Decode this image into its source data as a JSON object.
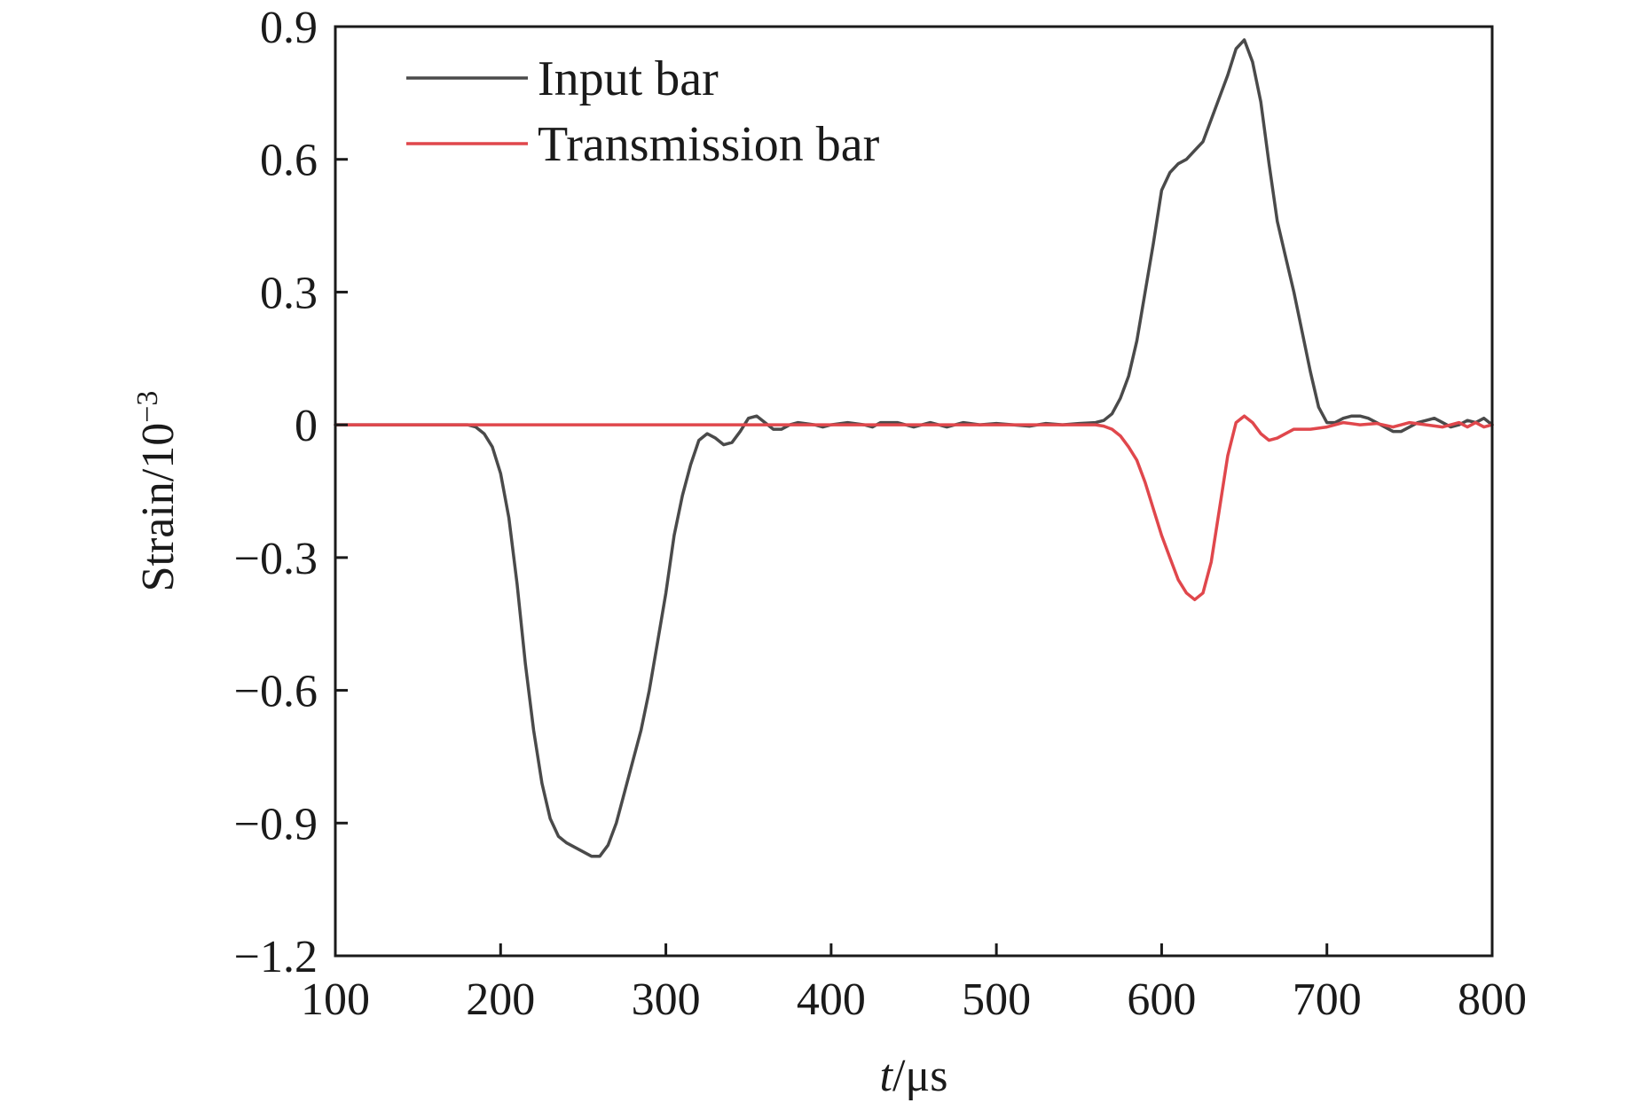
{
  "chart_data": {
    "type": "line",
    "title": "",
    "xlabel": {
      "var": "t",
      "unit": "/μs"
    },
    "ylabel": {
      "base": "Strain/10",
      "exp": "−3"
    },
    "xlim": [
      100,
      800
    ],
    "ylim": [
      -1.2,
      0.9
    ],
    "xticks": [
      100,
      200,
      300,
      400,
      500,
      600,
      700,
      800
    ],
    "xtick_labels": [
      "100",
      "200",
      "300",
      "400",
      "500",
      "600",
      "700",
      "800"
    ],
    "yticks": [
      -1.2,
      -0.9,
      -0.6,
      -0.3,
      0,
      0.3,
      0.6,
      0.9
    ],
    "ytick_labels": [
      "−1.2",
      "−0.9",
      "−0.6",
      "−0.3",
      "0",
      "0.3",
      "0.6",
      "0.9"
    ],
    "grid": false,
    "legend_position": "top-left",
    "series": [
      {
        "name": "Input bar",
        "color": "#4a4a4a",
        "points": [
          [
            100,
            0
          ],
          [
            170,
            0
          ],
          [
            180,
            0
          ],
          [
            185,
            -0.005
          ],
          [
            190,
            -0.02
          ],
          [
            195,
            -0.05
          ],
          [
            200,
            -0.11
          ],
          [
            205,
            -0.21
          ],
          [
            210,
            -0.36
          ],
          [
            215,
            -0.54
          ],
          [
            220,
            -0.69
          ],
          [
            225,
            -0.81
          ],
          [
            230,
            -0.89
          ],
          [
            235,
            -0.93
          ],
          [
            240,
            -0.945
          ],
          [
            245,
            -0.955
          ],
          [
            250,
            -0.965
          ],
          [
            255,
            -0.975
          ],
          [
            260,
            -0.975
          ],
          [
            265,
            -0.95
          ],
          [
            270,
            -0.9
          ],
          [
            275,
            -0.83
          ],
          [
            280,
            -0.76
          ],
          [
            285,
            -0.69
          ],
          [
            290,
            -0.6
          ],
          [
            295,
            -0.49
          ],
          [
            300,
            -0.38
          ],
          [
            305,
            -0.25
          ],
          [
            310,
            -0.16
          ],
          [
            315,
            -0.09
          ],
          [
            320,
            -0.035
          ],
          [
            325,
            -0.02
          ],
          [
            330,
            -0.03
          ],
          [
            335,
            -0.045
          ],
          [
            340,
            -0.04
          ],
          [
            345,
            -0.015
          ],
          [
            350,
            0.015
          ],
          [
            355,
            0.02
          ],
          [
            360,
            0.005
          ],
          [
            365,
            -0.01
          ],
          [
            370,
            -0.01
          ],
          [
            375,
            0
          ],
          [
            380,
            0.005
          ],
          [
            390,
            0
          ],
          [
            395,
            -0.005
          ],
          [
            400,
            0
          ],
          [
            410,
            0.005
          ],
          [
            420,
            0
          ],
          [
            425,
            -0.005
          ],
          [
            430,
            0.005
          ],
          [
            440,
            0.005
          ],
          [
            450,
            -0.005
          ],
          [
            460,
            0.005
          ],
          [
            470,
            -0.005
          ],
          [
            480,
            0.005
          ],
          [
            490,
            0
          ],
          [
            500,
            0.003
          ],
          [
            510,
            0
          ],
          [
            520,
            -0.003
          ],
          [
            530,
            0.003
          ],
          [
            540,
            0
          ],
          [
            550,
            0.003
          ],
          [
            560,
            0.005
          ],
          [
            565,
            0.01
          ],
          [
            570,
            0.025
          ],
          [
            575,
            0.06
          ],
          [
            580,
            0.11
          ],
          [
            585,
            0.19
          ],
          [
            590,
            0.3
          ],
          [
            595,
            0.41
          ],
          [
            600,
            0.53
          ],
          [
            605,
            0.57
          ],
          [
            610,
            0.59
          ],
          [
            615,
            0.6
          ],
          [
            620,
            0.62
          ],
          [
            625,
            0.64
          ],
          [
            630,
            0.69
          ],
          [
            635,
            0.74
          ],
          [
            640,
            0.79
          ],
          [
            645,
            0.85
          ],
          [
            650,
            0.87
          ],
          [
            655,
            0.82
          ],
          [
            660,
            0.73
          ],
          [
            665,
            0.59
          ],
          [
            670,
            0.46
          ],
          [
            675,
            0.38
          ],
          [
            680,
            0.3
          ],
          [
            685,
            0.21
          ],
          [
            690,
            0.12
          ],
          [
            695,
            0.04
          ],
          [
            700,
            0.005
          ],
          [
            705,
            0.005
          ],
          [
            710,
            0.015
          ],
          [
            715,
            0.02
          ],
          [
            720,
            0.02
          ],
          [
            725,
            0.015
          ],
          [
            730,
            0.005
          ],
          [
            735,
            -0.005
          ],
          [
            740,
            -0.015
          ],
          [
            745,
            -0.015
          ],
          [
            750,
            -0.005
          ],
          [
            755,
            0.005
          ],
          [
            760,
            0.01
          ],
          [
            765,
            0.015
          ],
          [
            770,
            0.005
          ],
          [
            775,
            -0.005
          ],
          [
            780,
            0
          ],
          [
            785,
            0.01
          ],
          [
            790,
            0.005
          ],
          [
            795,
            0.015
          ],
          [
            800,
            0
          ]
        ]
      },
      {
        "name": "Transmission bar",
        "color": "#e0474c",
        "points": [
          [
            100,
            0
          ],
          [
            550,
            0
          ],
          [
            560,
            0
          ],
          [
            565,
            -0.003
          ],
          [
            570,
            -0.01
          ],
          [
            575,
            -0.025
          ],
          [
            580,
            -0.05
          ],
          [
            585,
            -0.08
          ],
          [
            590,
            -0.13
          ],
          [
            595,
            -0.19
          ],
          [
            600,
            -0.25
          ],
          [
            605,
            -0.3
          ],
          [
            610,
            -0.35
          ],
          [
            615,
            -0.38
          ],
          [
            620,
            -0.395
          ],
          [
            625,
            -0.38
          ],
          [
            630,
            -0.31
          ],
          [
            635,
            -0.19
          ],
          [
            640,
            -0.07
          ],
          [
            645,
            0.005
          ],
          [
            650,
            0.02
          ],
          [
            655,
            0.005
          ],
          [
            660,
            -0.02
          ],
          [
            665,
            -0.035
          ],
          [
            670,
            -0.03
          ],
          [
            675,
            -0.02
          ],
          [
            680,
            -0.01
          ],
          [
            690,
            -0.01
          ],
          [
            700,
            -0.005
          ],
          [
            710,
            0.005
          ],
          [
            720,
            0
          ],
          [
            730,
            0.003
          ],
          [
            740,
            -0.005
          ],
          [
            750,
            0.005
          ],
          [
            760,
            0
          ],
          [
            770,
            -0.005
          ],
          [
            780,
            0.005
          ],
          [
            785,
            -0.005
          ],
          [
            790,
            0.005
          ],
          [
            795,
            -0.005
          ],
          [
            800,
            0
          ]
        ]
      }
    ]
  }
}
